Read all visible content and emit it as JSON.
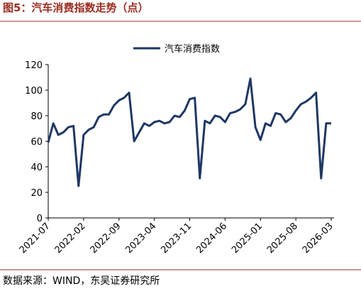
{
  "chart_data": {
    "type": "line",
    "title": "图5：汽车消费指数走势（点）",
    "source": "数据来源：WIND，东吴证券研究所",
    "categories": [
      "2021-07",
      null,
      null,
      null,
      null,
      null,
      null,
      "2022-02",
      null,
      null,
      null,
      null,
      null,
      null,
      "2022-09",
      null,
      null,
      null,
      null,
      null,
      null,
      "2023-04",
      null,
      null,
      null,
      null,
      null,
      null,
      "2023-11",
      null,
      null,
      null,
      null,
      null,
      null,
      "2024-06",
      null,
      null,
      null,
      null,
      null,
      null,
      "2025-01",
      null,
      null,
      null,
      null,
      null,
      null,
      "2025-08",
      null,
      null,
      null,
      null,
      null,
      null,
      "2026-03"
    ],
    "series": [
      {
        "name": "汽车消费指数",
        "color": "#1f3864",
        "values": [
          59,
          74,
          65,
          67,
          71,
          72,
          25,
          65,
          69,
          71,
          79,
          81,
          81,
          88,
          92,
          94,
          98,
          60,
          67,
          74,
          72,
          75,
          76,
          74,
          75,
          80,
          79,
          84,
          93,
          94,
          31,
          76,
          74,
          80,
          79,
          75,
          82,
          83,
          85,
          89,
          109,
          71,
          61,
          74,
          72,
          82,
          81,
          75,
          78,
          84,
          89,
          91,
          94,
          98,
          31,
          74,
          74
        ]
      }
    ],
    "ylim": [
      0,
      120
    ],
    "yticks": [
      0,
      20,
      40,
      60,
      80,
      100,
      120
    ],
    "grid": false,
    "legend": "top"
  }
}
